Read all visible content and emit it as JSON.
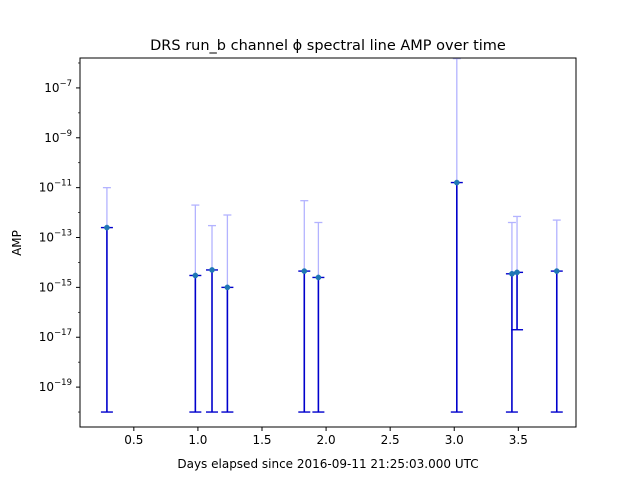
{
  "chart_data": {
    "type": "scatter",
    "title": "DRS run_b channel ϕ spectral line AMP over time",
    "xlabel": "Days elapsed since 2016-09-11 21:25:03.000 UTC",
    "ylabel": "AMP",
    "xlim": [
      0.08,
      3.95
    ],
    "ylim_log10": [
      -20.6,
      -5.8
    ],
    "y_scale": "log",
    "x_ticks": [
      0.5,
      1.0,
      1.5,
      2.0,
      2.5,
      3.0,
      3.5
    ],
    "x_tick_labels": [
      "0.5",
      "1.0",
      "1.5",
      "2.0",
      "2.5",
      "3.0",
      "3.5"
    ],
    "y_ticks_log10": [
      -19,
      -17,
      -15,
      -13,
      -11,
      -9,
      -7
    ],
    "grid": false,
    "colors": {
      "marker": "#1f77b4",
      "error_dark": "#0000cc",
      "error_light": "#b3b3ff",
      "axes": "#000000"
    },
    "points": [
      {
        "x": 0.29,
        "y": 2.5e-13,
        "lower": 1e-20,
        "upper_light": 1e-11
      },
      {
        "x": 0.98,
        "y": 3e-15,
        "lower": 1e-20,
        "upper_light": 2e-12
      },
      {
        "x": 1.11,
        "y": 5e-15,
        "lower": 1e-20,
        "upper_light": 3e-13
      },
      {
        "x": 1.23,
        "y": 1e-15,
        "lower": 1e-20,
        "upper_light": 8e-13
      },
      {
        "x": 1.83,
        "y": 4.5e-15,
        "lower": 1e-20,
        "upper_light": 3e-12
      },
      {
        "x": 1.94,
        "y": 2.5e-15,
        "lower": 1e-20,
        "upper_light": 4e-13
      },
      {
        "x": 3.02,
        "y": 1.6e-11,
        "lower": 1e-20,
        "upper_light": 1.5e-06
      },
      {
        "x": 3.45,
        "y": 3.5e-15,
        "lower": 1e-20,
        "upper_light": 4e-13
      },
      {
        "x": 3.49,
        "y": 4e-15,
        "lower": 2e-17,
        "upper_light": 7e-13
      },
      {
        "x": 3.8,
        "y": 4.5e-15,
        "lower": 1e-20,
        "upper_light": 5e-13
      }
    ]
  }
}
